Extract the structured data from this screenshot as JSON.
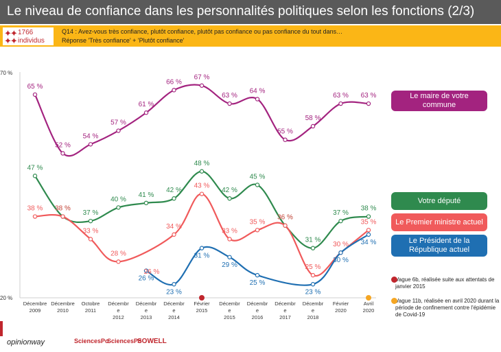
{
  "header": {
    "title": "Le niveau de confiance dans les personnalités politiques selon les fonctions (2/3)"
  },
  "question_bar": {
    "sample_number": "1766",
    "sample_label": "individus",
    "question": "Q14 : Avez-vous très confiance, plutôt confiance, plutôt pas confiance ou pas confiance du tout dans…",
    "response": "Réponse 'Très confiance' + 'Plutôt confiance'"
  },
  "chart_data": {
    "type": "line",
    "ylim": [
      20,
      70
    ],
    "y_tick_labels": [
      "70 %",
      "20 %"
    ],
    "categories": [
      [
        "Décembre",
        "2009"
      ],
      [
        "Décembre",
        "2010"
      ],
      [
        "Octobre",
        "2011"
      ],
      [
        "Décembr",
        "e",
        "2012"
      ],
      [
        "Décembr",
        "e",
        "2013"
      ],
      [
        "Décembr",
        "e",
        "2014"
      ],
      [
        "Février",
        "2015"
      ],
      [
        "Décembr",
        "e",
        "2015"
      ],
      [
        "Décembr",
        "e",
        "2016"
      ],
      [
        "Décembr",
        "e",
        "2017"
      ],
      [
        "Décembr",
        "e",
        "2018"
      ],
      [
        "Février",
        "2020"
      ],
      [
        "Avril",
        "2020"
      ]
    ],
    "series": [
      {
        "name": "Le maire de votre commune",
        "color": "#a3237f",
        "values": [
          65,
          52,
          54,
          57,
          61,
          66,
          67,
          63,
          64,
          55,
          58,
          63,
          63
        ],
        "labels": [
          "65 %",
          "52 %",
          "54 %",
          "57 %",
          "61 %",
          "66 %",
          "67 %",
          "63 %",
          "64 %",
          "55 %",
          "58 %",
          "63 %",
          "63 %"
        ]
      },
      {
        "name": "Votre député",
        "color": "#2f8a4e",
        "values": [
          47,
          38,
          37,
          40,
          41,
          42,
          48,
          42,
          45,
          36,
          31,
          37,
          38
        ],
        "labels": [
          "47 %",
          "38 %",
          "37 %",
          "40 %",
          "41 %",
          "42 %",
          "48 %",
          "42 %",
          "45 %",
          "36 %",
          "31 %",
          "37 %",
          "38 %"
        ]
      },
      {
        "name": "Le Premier ministre actuel",
        "color": "#f05a5b",
        "values": [
          38,
          38,
          33,
          28,
          null,
          34,
          43,
          33,
          35,
          36,
          25,
          30,
          35
        ],
        "labels": [
          "38 %",
          "38 %",
          "33 %",
          "28 %",
          "",
          "34 %",
          "43 %",
          "33 %",
          "35 %",
          "36 %",
          "25 %",
          "30 %",
          "35 %"
        ],
        "extra_labels": [
          "26 %"
        ]
      },
      {
        "name": "Le Président de la République actuel",
        "color": "#1f6fb2",
        "values": [
          null,
          null,
          null,
          null,
          26,
          23,
          31,
          29,
          25,
          null,
          23,
          30,
          34
        ],
        "labels": [
          "",
          "",
          "",
          "",
          "26 %",
          "23 %",
          "31 %",
          "29 %",
          "25 %",
          "",
          "23 %",
          "30 %",
          "34 %"
        ]
      }
    ],
    "event_markers": [
      {
        "category_index": 6,
        "color": "#c0262d"
      },
      {
        "category_index": 12,
        "color": "#f5a623"
      }
    ],
    "legend": [
      {
        "name": "Le maire de votre commune",
        "color": "#a3237f"
      },
      {
        "name": "Votre député",
        "color": "#2f8a4e"
      },
      {
        "name": "Le Premier ministre actuel",
        "color": "#f05a5b"
      },
      {
        "name": "Le Président de la République actuel",
        "color": "#1f6fb2"
      }
    ],
    "notes": [
      {
        "color": "#c0262d",
        "text": "Vague 6b, réalisée suite aux attentats de janvier 2015"
      },
      {
        "color": "#f5a623",
        "text": "Vague 11b, réalisée en avril 2020 durant la période de confinement contre l'épidémie de Covid-19"
      }
    ]
  },
  "footer": {
    "logo_opinionway": "opinionway",
    "logo_sciencespo_1": "SciencesPo",
    "logo_sciencespo_2": "SciencesPo",
    "logo_sowell": "SOWELL"
  }
}
